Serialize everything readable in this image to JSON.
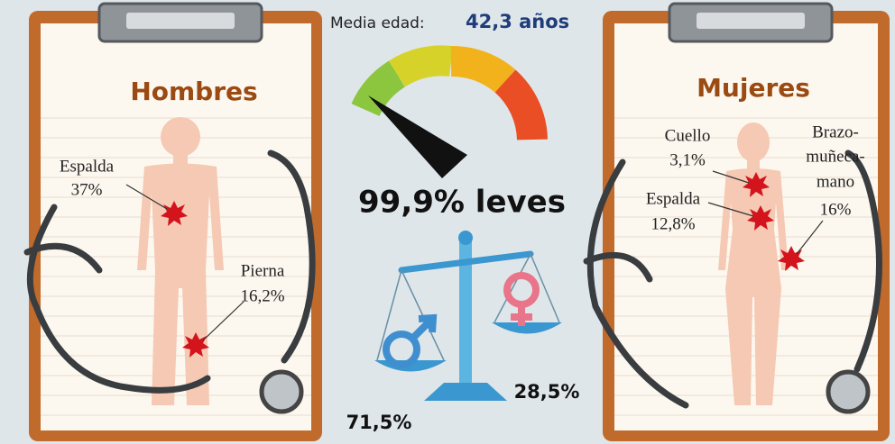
{
  "header": {
    "label": "Media edad:",
    "value": "42,3 años"
  },
  "hombres": {
    "title": "Hombres",
    "injuries": [
      {
        "label": "Espalda",
        "value": "37%"
      },
      {
        "label": "Pierna",
        "value": "16,2%"
      }
    ]
  },
  "mujeres": {
    "title": "Mujeres",
    "injuries": [
      {
        "label": "Cuello",
        "value": "3,1%"
      },
      {
        "label": "Espalda",
        "value": "12,8%"
      },
      {
        "label": [
          "Brazo-",
          "muñeca-",
          "mano"
        ],
        "value": "16%"
      }
    ]
  },
  "gauge": {
    "label": "99,9% leves"
  },
  "gender": {
    "male": "71,5%",
    "female": "28,5%"
  }
}
